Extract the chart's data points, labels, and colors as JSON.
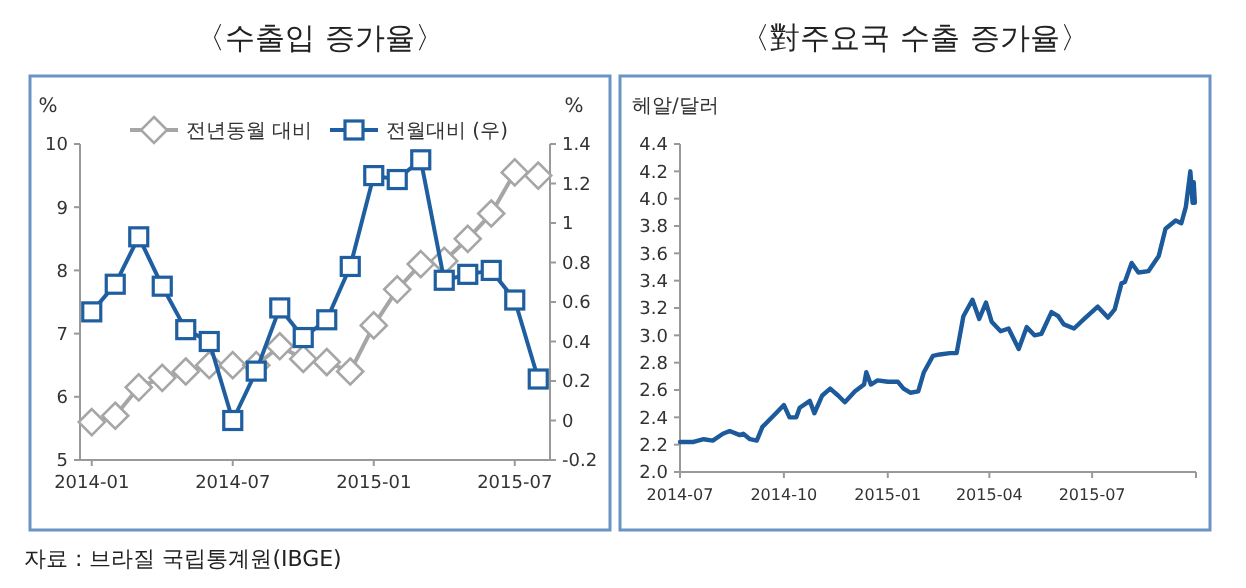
{
  "chart_data": [
    {
      "type": "line",
      "title": "〈수출입 증가율〉",
      "ylabel": "%",
      "y2label": "%",
      "legend": "top",
      "categories": [
        "2014-01",
        null,
        null,
        null,
        null,
        null,
        "2014-07",
        null,
        null,
        null,
        null,
        null,
        "2015-01",
        null,
        null,
        null,
        null,
        null,
        "2015-07",
        null
      ],
      "series": [
        {
          "name": "전년동월 대비",
          "color": "#a6a6a6",
          "marker": "diamond",
          "values": [
            5.6,
            5.7,
            6.15,
            6.3,
            6.4,
            6.5,
            6.5,
            6.5,
            6.8,
            6.6,
            6.55,
            6.4,
            7.13,
            7.7,
            8.1,
            8.15,
            8.5,
            8.9,
            9.55,
            9.5
          ]
        },
        {
          "name": "전월대비 (우)",
          "color": "#1f5fa0",
          "marker": "square",
          "axis": "y2",
          "values": [
            0.55,
            0.69,
            0.93,
            0.68,
            0.46,
            0.4,
            0.0,
            0.25,
            0.57,
            0.42,
            0.51,
            0.78,
            1.24,
            1.22,
            1.32,
            0.71,
            0.74,
            0.76,
            0.61,
            0.21
          ]
        }
      ],
      "ylim": [
        5,
        10
      ],
      "yticks": [
        5,
        6,
        7,
        8,
        9,
        10
      ],
      "y2lim": [
        -0.2,
        1.4
      ],
      "y2ticks": [
        -0.2,
        0,
        0.2,
        0.4,
        0.6,
        0.8,
        1,
        1.2,
        1.4
      ],
      "annotations": [
        "자료 : 브라질 국립통계원(IBGE)"
      ]
    },
    {
      "type": "line",
      "title": "〈對주요국 수출 증가율〉",
      "ylabel": "헤알/달러",
      "x": [
        "2014-07-01",
        "2014-07-13",
        "2014-07-22",
        "2014-07-30",
        "2014-08-08",
        "2014-08-14",
        "2014-08-23",
        "2014-08-26",
        "2014-09-01",
        "2014-09-07",
        "2014-09-12",
        "2014-09-24",
        "2014-10-01",
        "2014-10-06",
        "2014-10-12",
        "2014-10-15",
        "2014-10-24",
        "2014-10-28",
        "2014-11-04",
        "2014-11-11",
        "2014-11-18",
        "2014-11-24",
        "2014-12-03",
        "2014-12-11",
        "2014-12-13",
        "2014-12-17",
        "2014-12-23",
        "2015-01-01",
        "2015-01-10",
        "2015-01-15",
        "2015-01-21",
        "2015-01-28",
        "2015-02-02",
        "2015-02-10",
        "2015-02-16",
        "2015-02-25",
        "2015-03-03",
        "2015-03-09",
        "2015-03-17",
        "2015-03-23",
        "2015-03-29",
        "2015-04-03",
        "2015-04-11",
        "2015-04-18",
        "2015-04-27",
        "2015-05-04",
        "2015-05-11",
        "2015-05-17",
        "2015-05-26",
        "2015-06-01",
        "2015-06-06",
        "2015-06-15",
        "2015-06-24",
        "2015-07-06",
        "2015-07-15",
        "2015-07-21",
        "2015-07-27",
        "2015-07-30",
        "2015-08-05",
        "2015-08-11",
        "2015-08-20",
        "2015-08-29",
        "2015-09-04",
        "2015-09-13",
        "2015-09-18",
        "2015-09-22",
        "2015-09-26",
        "2015-09-28",
        "2015-09-29",
        "2015-09-30"
      ],
      "series": [
        {
          "color": "#1c5a9c",
          "values": [
            2.22,
            2.22,
            2.24,
            2.23,
            2.28,
            2.3,
            2.27,
            2.28,
            2.24,
            2.23,
            2.33,
            2.43,
            2.49,
            2.4,
            2.4,
            2.47,
            2.52,
            2.43,
            2.56,
            2.61,
            2.56,
            2.51,
            2.59,
            2.64,
            2.73,
            2.64,
            2.67,
            2.66,
            2.66,
            2.61,
            2.58,
            2.59,
            2.73,
            2.85,
            2.86,
            2.87,
            2.87,
            3.14,
            3.26,
            3.12,
            3.24,
            3.1,
            3.03,
            3.05,
            2.9,
            3.06,
            3.0,
            3.01,
            3.17,
            3.14,
            3.08,
            3.05,
            3.12,
            3.21,
            3.13,
            3.19,
            3.38,
            3.39,
            3.53,
            3.46,
            3.47,
            3.58,
            3.78,
            3.84,
            3.82,
            3.94,
            4.2,
            3.97,
            4.12,
            3.97
          ]
        }
      ],
      "xlim": [
        "2014-07-01",
        "2015-10-01"
      ],
      "xticks": [
        {
          "value": "2014-07-01",
          "label": "2014-07"
        },
        {
          "value": "2014-10-01",
          "label": "2014-10"
        },
        {
          "value": "2015-01-01",
          "label": "2015-01"
        },
        {
          "value": "2015-04-01",
          "label": "2015-04"
        },
        {
          "value": "2015-07-01",
          "label": "2015-07"
        },
        {
          "value": "2015-10-01",
          "label": null
        }
      ],
      "ylim": [
        2,
        4.4
      ],
      "yticks": [
        {
          "value": 2,
          "label": "2.0"
        },
        2.2,
        2.4,
        2.6,
        2.8,
        {
          "value": 3,
          "label": "3.0"
        },
        3.2,
        3.4,
        3.6,
        3.8,
        {
          "value": 4,
          "label": "4.0"
        },
        4.2,
        4.4
      ]
    }
  ]
}
